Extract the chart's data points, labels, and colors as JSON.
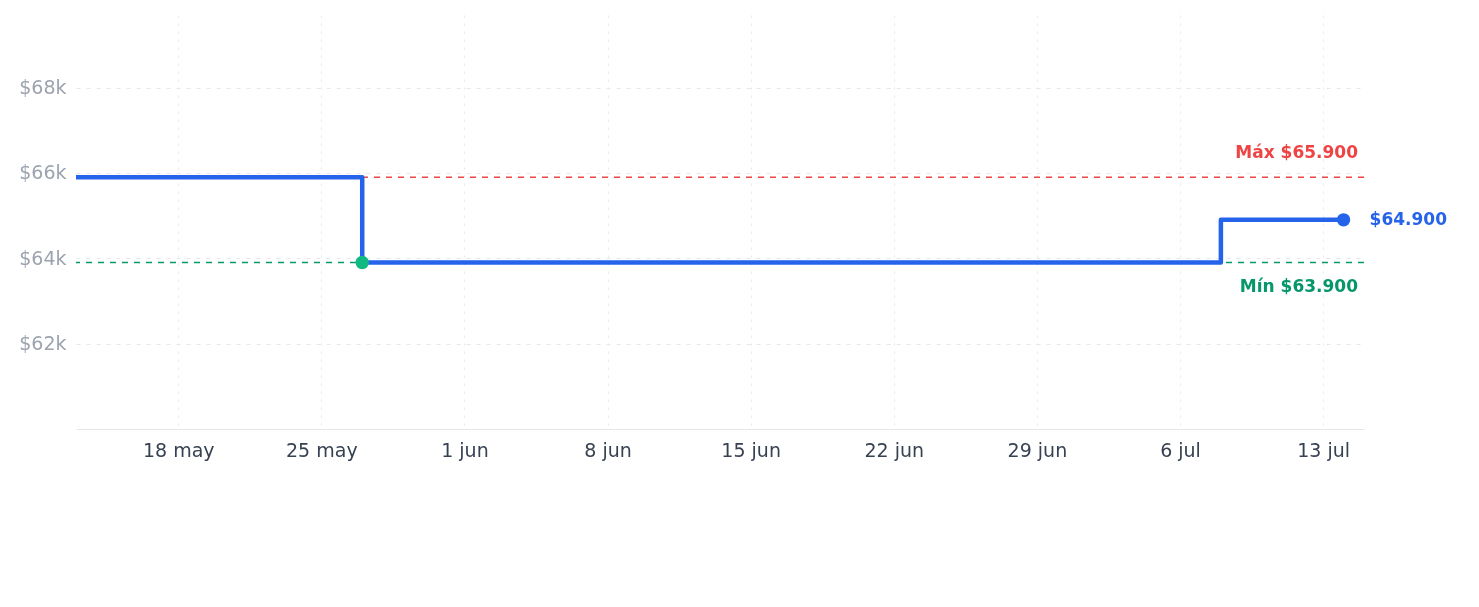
{
  "chart_data": {
    "type": "step",
    "x": [
      "--05-13",
      "--05-27",
      "--07-08",
      "--07-14"
    ],
    "series": [
      {
        "type": "step",
        "color": "#2563eb",
        "marker": "none",
        "values": [
          65900,
          63900,
          64900,
          64900
        ]
      },
      {
        "type": "scatter",
        "color": "#10b981",
        "marker": "circle",
        "x": [
          "--05-27"
        ],
        "values": [
          63900
        ]
      },
      {
        "type": "scatter",
        "color": "#2563eb",
        "marker": "circle",
        "x": [
          "--07-14"
        ],
        "values": [
          64900
        ]
      }
    ],
    "xlim": [
      "--05-13",
      "--07-15"
    ],
    "xticks": [
      {
        "value": "--05-18",
        "label": "18 may"
      },
      {
        "value": "--05-25",
        "label": "25 may"
      },
      {
        "value": "--06-01",
        "label": "1 jun"
      },
      {
        "value": "--06-08",
        "label": "8 jun"
      },
      {
        "value": "--06-15",
        "label": "15 jun"
      },
      {
        "value": "--06-22",
        "label": "22 jun"
      },
      {
        "value": "--06-29",
        "label": "29 jun"
      },
      {
        "value": "--07-06",
        "label": "6 jul"
      },
      {
        "value": "--07-13",
        "label": "13 jul"
      }
    ],
    "ylim": [
      60000,
      69700
    ],
    "yticks": [
      {
        "value": 62000,
        "label": "$62k"
      },
      {
        "value": 64000,
        "label": "$64k"
      },
      {
        "value": 66000,
        "label": "$66k"
      },
      {
        "value": 68000,
        "label": "$68k"
      }
    ],
    "ref_lines": [
      {
        "axis": "y",
        "value": 65900,
        "label": "Máx $65.900",
        "color": "#ef4444",
        "line_style": "dashed"
      },
      {
        "axis": "y",
        "value": 63900,
        "label": "Mín $63.900",
        "color": "#059669",
        "line_style": "dashed"
      }
    ],
    "annotations": [
      {
        "text": "$64.900",
        "x": "--07-14",
        "y": 64900
      }
    ],
    "grid": true
  }
}
